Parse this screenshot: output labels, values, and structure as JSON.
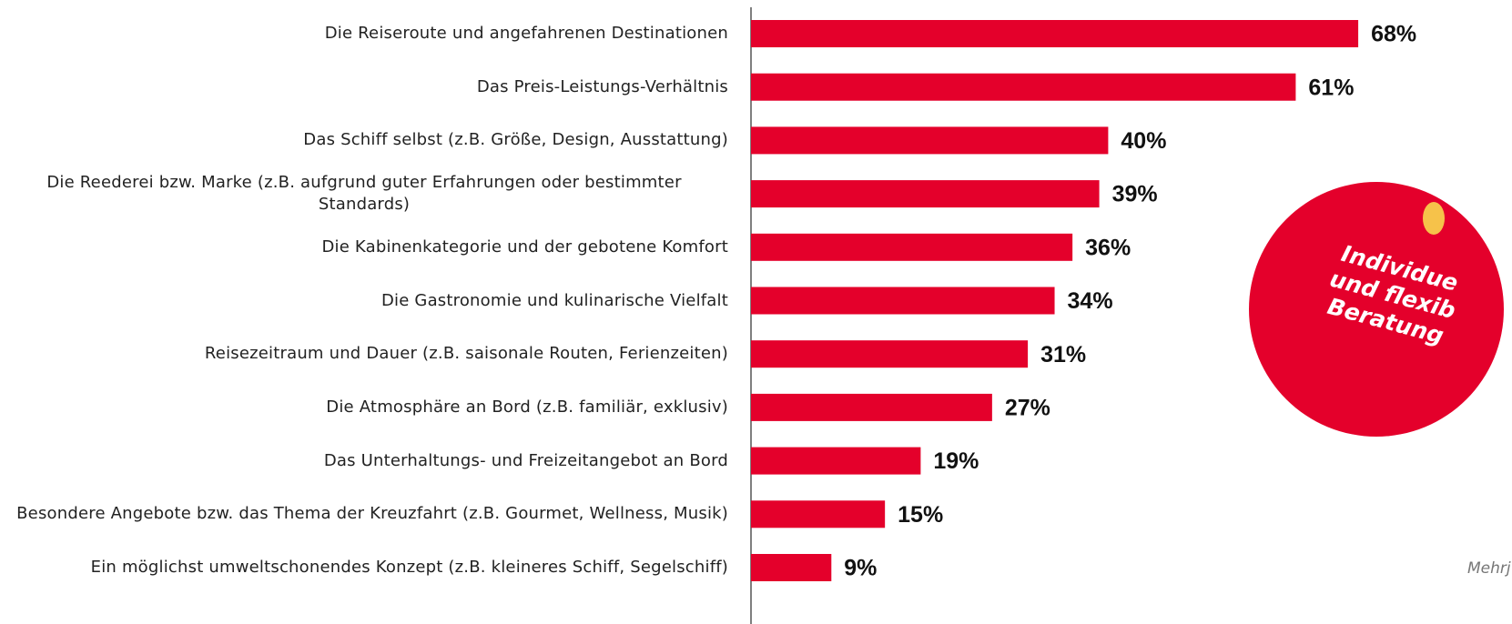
{
  "chart_data": {
    "type": "bar",
    "orientation": "horizontal",
    "categories": [
      "Die Reiseroute und angefahrenen Destinationen",
      "Das Preis-Leistungs-Verhältnis",
      "Das Schiff selbst (z.B. Größe, Design, Ausstattung)",
      "Die Reederei bzw. Marke (z.B. aufgrund guter Erfahrungen oder bestimmter Standards)",
      "Die Kabinenkategorie und der gebotene Komfort",
      "Die Gastronomie und kulinarische Vielfalt",
      "Reisezeitraum und Dauer (z.B. saisonale Routen, Ferienzeiten)",
      "Die Atmosphäre an Bord (z.B. familiär, exklusiv)",
      "Das Unterhaltungs- und Freizeitangebot an Bord",
      "Besondere Angebote bzw. das Thema der Kreuzfahrt (z.B. Gourmet, Wellness, Musik)",
      "Ein möglichst umweltschonendes Konzept (z.B. kleineres Schiff, Segelschiff)"
    ],
    "values": [
      68,
      61,
      40,
      39,
      36,
      34,
      31,
      27,
      19,
      15,
      9
    ],
    "value_labels": [
      "68%",
      "61%",
      "40%",
      "39%",
      "36%",
      "34%",
      "31%",
      "27%",
      "19%",
      "15%",
      "9%"
    ],
    "color": "#e4002b",
    "annotation": [
      "Individue",
      "und flexib",
      "Beratung"
    ],
    "annotation_color": "#e4002b",
    "footnote": "Mehrj"
  }
}
